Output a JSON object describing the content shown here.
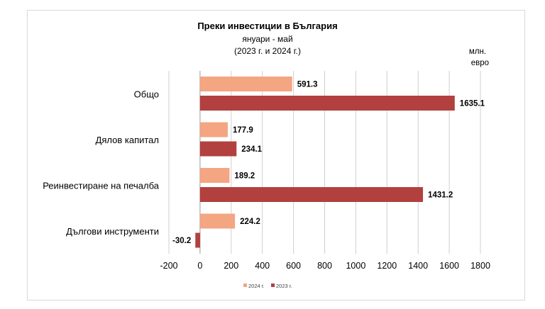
{
  "chart_data": {
    "type": "bar",
    "orientation": "horizontal",
    "title": "Преки инвестиции в България",
    "subtitle": "януари - май",
    "subtitle2": "(2023 г. и 2024 г.)",
    "unit_label_line1": "млн.",
    "unit_label_line2": "евро",
    "categories": [
      "Общо",
      "Дялов капитал",
      "Реинвестиране на печалба",
      "Дългови инструменти"
    ],
    "series": [
      {
        "name": "2024 г.",
        "color": "#f4a582",
        "values": [
          591.3,
          177.9,
          189.2,
          224.2
        ],
        "labels": [
          "591.3",
          "177.9",
          "189.2",
          "224.2"
        ]
      },
      {
        "name": "2023 г.",
        "color": "#b2403f",
        "values": [
          1635.1,
          234.1,
          1431.2,
          -30.2
        ],
        "labels": [
          "1635.1",
          "234.1",
          "1431.2",
          "-30.2"
        ]
      }
    ],
    "xlim": [
      -200,
      1800
    ],
    "xticks": [
      -200,
      0,
      200,
      400,
      600,
      800,
      1000,
      1200,
      1400,
      1600,
      1800
    ],
    "xtick_labels": [
      "-200",
      "0",
      "200",
      "400",
      "600",
      "800",
      "1000",
      "1200",
      "1400",
      "1600",
      "1800"
    ],
    "grid": "vertical",
    "legend_position": "bottom"
  }
}
